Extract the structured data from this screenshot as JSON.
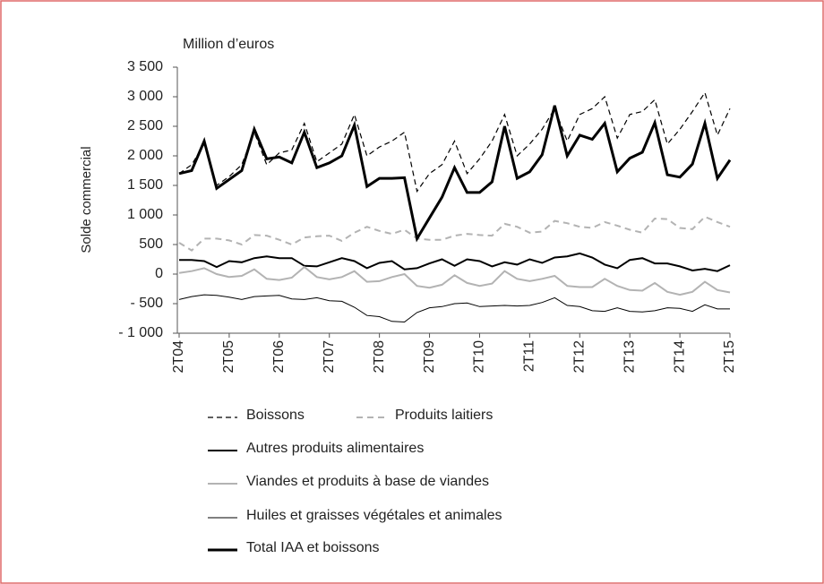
{
  "chart_data": {
    "type": "line",
    "title": "Million d’euros",
    "y_label": "Solde commercial",
    "categories": [
      "2T04",
      null,
      null,
      null,
      "2T05",
      null,
      null,
      null,
      "2T06",
      null,
      null,
      null,
      "2T07",
      null,
      null,
      null,
      "2T08",
      null,
      null,
      null,
      "2T09",
      null,
      null,
      null,
      "2T10",
      null,
      null,
      null,
      "2T11",
      null,
      null,
      null,
      "2T12",
      null,
      null,
      null,
      "2T13",
      null,
      null,
      null,
      "2T14",
      null,
      null,
      null,
      "2T15"
    ],
    "ylim": [
      -1000,
      3500
    ],
    "yticks": [
      {
        "value": 3500,
        "label": "3 500"
      },
      {
        "value": 3000,
        "label": "3 000"
      },
      {
        "value": 2500,
        "label": "2 500"
      },
      {
        "value": 2000,
        "label": "2 000"
      },
      {
        "value": 1500,
        "label": "1 500"
      },
      {
        "value": 1000,
        "label": "1 000"
      },
      500,
      0,
      {
        "value": -500,
        "label": "- 500"
      },
      {
        "value": -1000,
        "label": "- 1 000"
      }
    ],
    "grid": false,
    "series": [
      {
        "name": "Boissons",
        "color": "#000000",
        "width": 1.2,
        "dash": "6,4",
        "values": [
          1700,
          1850,
          2200,
          1500,
          1650,
          1850,
          2400,
          1850,
          2050,
          2100,
          2550,
          1900,
          2050,
          2200,
          2700,
          2000,
          2150,
          2250,
          2400,
          1400,
          1700,
          1850,
          2250,
          1700,
          1950,
          2250,
          2700,
          2000,
          2200,
          2450,
          2800,
          2250,
          2700,
          2800,
          3000,
          2300,
          2700,
          2750,
          2950,
          2200,
          2450,
          2750,
          3070,
          2350,
          2800
        ]
      },
      {
        "name": "Produits laitiers",
        "color": "#b3b3b3",
        "width": 2,
        "dash": "7,5",
        "values": [
          530,
          400,
          600,
          600,
          570,
          500,
          660,
          650,
          580,
          500,
          620,
          640,
          650,
          560,
          700,
          800,
          730,
          680,
          750,
          600,
          580,
          580,
          650,
          680,
          660,
          650,
          850,
          800,
          700,
          720,
          900,
          860,
          800,
          780,
          880,
          820,
          750,
          700,
          940,
          930,
          780,
          760,
          970,
          880,
          800
        ]
      },
      {
        "name": "Autres produits alimentaires",
        "color": "#000000",
        "width": 2,
        "dash": "none",
        "values": [
          240,
          240,
          220,
          120,
          220,
          200,
          270,
          300,
          270,
          270,
          140,
          130,
          200,
          270,
          220,
          100,
          190,
          220,
          80,
          100,
          180,
          250,
          140,
          250,
          220,
          130,
          200,
          160,
          250,
          190,
          280,
          300,
          350,
          280,
          160,
          100,
          240,
          270,
          180,
          180,
          130,
          60,
          90,
          50,
          150
        ]
      },
      {
        "name": "Viandes et produits à base de viandes",
        "color": "#b3b3b3",
        "width": 2,
        "dash": "none",
        "values": [
          20,
          50,
          100,
          0,
          -50,
          -30,
          80,
          -80,
          -100,
          -60,
          120,
          -50,
          -90,
          -50,
          50,
          -130,
          -120,
          -50,
          0,
          -200,
          -230,
          -180,
          -20,
          -150,
          -200,
          -160,
          50,
          -80,
          -120,
          -80,
          -30,
          -200,
          -220,
          -220,
          -80,
          -200,
          -270,
          -280,
          -150,
          -300,
          -350,
          -300,
          -130,
          -270,
          -310
        ]
      },
      {
        "name": "Huiles et graisses végétales et animales",
        "color": "#000000",
        "width": 1,
        "dash": "none",
        "values": [
          -430,
          -380,
          -350,
          -360,
          -390,
          -430,
          -380,
          -370,
          -360,
          -420,
          -430,
          -400,
          -450,
          -460,
          -560,
          -700,
          -720,
          -800,
          -810,
          -650,
          -570,
          -550,
          -500,
          -490,
          -550,
          -540,
          -530,
          -540,
          -530,
          -480,
          -400,
          -530,
          -550,
          -620,
          -630,
          -570,
          -630,
          -640,
          -620,
          -570,
          -580,
          -630,
          -520,
          -590,
          -590
        ]
      },
      {
        "name": "Total IAA et boissons",
        "color": "#000000",
        "width": 3,
        "dash": "none",
        "values": [
          1700,
          1750,
          2250,
          1450,
          1600,
          1750,
          2450,
          1950,
          1980,
          1880,
          2400,
          1800,
          1880,
          2000,
          2520,
          1480,
          1620,
          1620,
          1630,
          600,
          950,
          1300,
          1800,
          1380,
          1380,
          1560,
          2500,
          1620,
          1730,
          2020,
          2850,
          2000,
          2350,
          2280,
          2550,
          1730,
          1960,
          2060,
          2560,
          1680,
          1640,
          1860,
          2550,
          1620,
          1930
        ]
      }
    ]
  }
}
